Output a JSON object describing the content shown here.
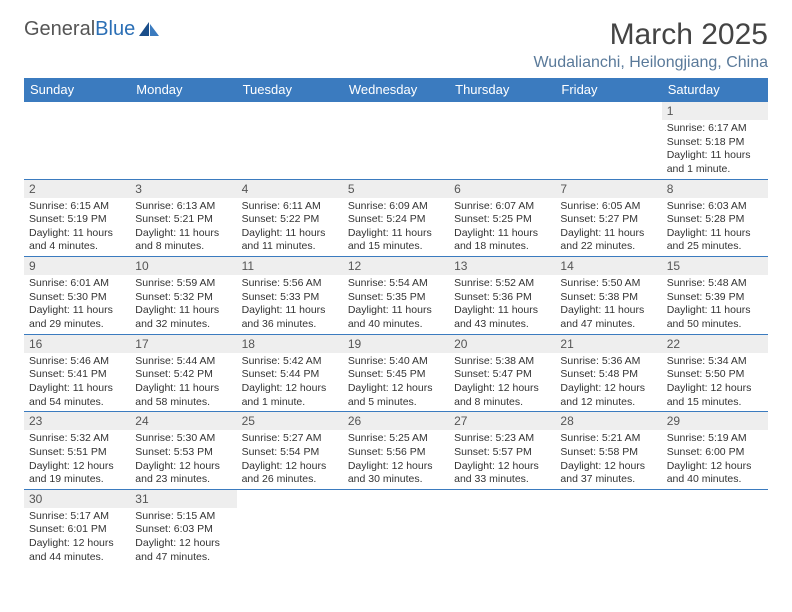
{
  "brand": {
    "part1": "General",
    "part2": "Blue"
  },
  "title": "March 2025",
  "location": "Wudalianchi, Heilongjiang, China",
  "colors": {
    "header_bg": "#3b7bbf",
    "header_fg": "#ffffff",
    "daynum_bg": "#eeeeee",
    "border": "#3b7bbf",
    "location_fg": "#5a7a9a"
  },
  "daynames": [
    "Sunday",
    "Monday",
    "Tuesday",
    "Wednesday",
    "Thursday",
    "Friday",
    "Saturday"
  ],
  "weeks": [
    [
      {
        "n": "",
        "sr": "",
        "ss": "",
        "dl": ""
      },
      {
        "n": "",
        "sr": "",
        "ss": "",
        "dl": ""
      },
      {
        "n": "",
        "sr": "",
        "ss": "",
        "dl": ""
      },
      {
        "n": "",
        "sr": "",
        "ss": "",
        "dl": ""
      },
      {
        "n": "",
        "sr": "",
        "ss": "",
        "dl": ""
      },
      {
        "n": "",
        "sr": "",
        "ss": "",
        "dl": ""
      },
      {
        "n": "1",
        "sr": "Sunrise: 6:17 AM",
        "ss": "Sunset: 5:18 PM",
        "dl": "Daylight: 11 hours and 1 minute."
      }
    ],
    [
      {
        "n": "2",
        "sr": "Sunrise: 6:15 AM",
        "ss": "Sunset: 5:19 PM",
        "dl": "Daylight: 11 hours and 4 minutes."
      },
      {
        "n": "3",
        "sr": "Sunrise: 6:13 AM",
        "ss": "Sunset: 5:21 PM",
        "dl": "Daylight: 11 hours and 8 minutes."
      },
      {
        "n": "4",
        "sr": "Sunrise: 6:11 AM",
        "ss": "Sunset: 5:22 PM",
        "dl": "Daylight: 11 hours and 11 minutes."
      },
      {
        "n": "5",
        "sr": "Sunrise: 6:09 AM",
        "ss": "Sunset: 5:24 PM",
        "dl": "Daylight: 11 hours and 15 minutes."
      },
      {
        "n": "6",
        "sr": "Sunrise: 6:07 AM",
        "ss": "Sunset: 5:25 PM",
        "dl": "Daylight: 11 hours and 18 minutes."
      },
      {
        "n": "7",
        "sr": "Sunrise: 6:05 AM",
        "ss": "Sunset: 5:27 PM",
        "dl": "Daylight: 11 hours and 22 minutes."
      },
      {
        "n": "8",
        "sr": "Sunrise: 6:03 AM",
        "ss": "Sunset: 5:28 PM",
        "dl": "Daylight: 11 hours and 25 minutes."
      }
    ],
    [
      {
        "n": "9",
        "sr": "Sunrise: 6:01 AM",
        "ss": "Sunset: 5:30 PM",
        "dl": "Daylight: 11 hours and 29 minutes."
      },
      {
        "n": "10",
        "sr": "Sunrise: 5:59 AM",
        "ss": "Sunset: 5:32 PM",
        "dl": "Daylight: 11 hours and 32 minutes."
      },
      {
        "n": "11",
        "sr": "Sunrise: 5:56 AM",
        "ss": "Sunset: 5:33 PM",
        "dl": "Daylight: 11 hours and 36 minutes."
      },
      {
        "n": "12",
        "sr": "Sunrise: 5:54 AM",
        "ss": "Sunset: 5:35 PM",
        "dl": "Daylight: 11 hours and 40 minutes."
      },
      {
        "n": "13",
        "sr": "Sunrise: 5:52 AM",
        "ss": "Sunset: 5:36 PM",
        "dl": "Daylight: 11 hours and 43 minutes."
      },
      {
        "n": "14",
        "sr": "Sunrise: 5:50 AM",
        "ss": "Sunset: 5:38 PM",
        "dl": "Daylight: 11 hours and 47 minutes."
      },
      {
        "n": "15",
        "sr": "Sunrise: 5:48 AM",
        "ss": "Sunset: 5:39 PM",
        "dl": "Daylight: 11 hours and 50 minutes."
      }
    ],
    [
      {
        "n": "16",
        "sr": "Sunrise: 5:46 AM",
        "ss": "Sunset: 5:41 PM",
        "dl": "Daylight: 11 hours and 54 minutes."
      },
      {
        "n": "17",
        "sr": "Sunrise: 5:44 AM",
        "ss": "Sunset: 5:42 PM",
        "dl": "Daylight: 11 hours and 58 minutes."
      },
      {
        "n": "18",
        "sr": "Sunrise: 5:42 AM",
        "ss": "Sunset: 5:44 PM",
        "dl": "Daylight: 12 hours and 1 minute."
      },
      {
        "n": "19",
        "sr": "Sunrise: 5:40 AM",
        "ss": "Sunset: 5:45 PM",
        "dl": "Daylight: 12 hours and 5 minutes."
      },
      {
        "n": "20",
        "sr": "Sunrise: 5:38 AM",
        "ss": "Sunset: 5:47 PM",
        "dl": "Daylight: 12 hours and 8 minutes."
      },
      {
        "n": "21",
        "sr": "Sunrise: 5:36 AM",
        "ss": "Sunset: 5:48 PM",
        "dl": "Daylight: 12 hours and 12 minutes."
      },
      {
        "n": "22",
        "sr": "Sunrise: 5:34 AM",
        "ss": "Sunset: 5:50 PM",
        "dl": "Daylight: 12 hours and 15 minutes."
      }
    ],
    [
      {
        "n": "23",
        "sr": "Sunrise: 5:32 AM",
        "ss": "Sunset: 5:51 PM",
        "dl": "Daylight: 12 hours and 19 minutes."
      },
      {
        "n": "24",
        "sr": "Sunrise: 5:30 AM",
        "ss": "Sunset: 5:53 PM",
        "dl": "Daylight: 12 hours and 23 minutes."
      },
      {
        "n": "25",
        "sr": "Sunrise: 5:27 AM",
        "ss": "Sunset: 5:54 PM",
        "dl": "Daylight: 12 hours and 26 minutes."
      },
      {
        "n": "26",
        "sr": "Sunrise: 5:25 AM",
        "ss": "Sunset: 5:56 PM",
        "dl": "Daylight: 12 hours and 30 minutes."
      },
      {
        "n": "27",
        "sr": "Sunrise: 5:23 AM",
        "ss": "Sunset: 5:57 PM",
        "dl": "Daylight: 12 hours and 33 minutes."
      },
      {
        "n": "28",
        "sr": "Sunrise: 5:21 AM",
        "ss": "Sunset: 5:58 PM",
        "dl": "Daylight: 12 hours and 37 minutes."
      },
      {
        "n": "29",
        "sr": "Sunrise: 5:19 AM",
        "ss": "Sunset: 6:00 PM",
        "dl": "Daylight: 12 hours and 40 minutes."
      }
    ],
    [
      {
        "n": "30",
        "sr": "Sunrise: 5:17 AM",
        "ss": "Sunset: 6:01 PM",
        "dl": "Daylight: 12 hours and 44 minutes."
      },
      {
        "n": "31",
        "sr": "Sunrise: 5:15 AM",
        "ss": "Sunset: 6:03 PM",
        "dl": "Daylight: 12 hours and 47 minutes."
      },
      {
        "n": "",
        "sr": "",
        "ss": "",
        "dl": ""
      },
      {
        "n": "",
        "sr": "",
        "ss": "",
        "dl": ""
      },
      {
        "n": "",
        "sr": "",
        "ss": "",
        "dl": ""
      },
      {
        "n": "",
        "sr": "",
        "ss": "",
        "dl": ""
      },
      {
        "n": "",
        "sr": "",
        "ss": "",
        "dl": ""
      }
    ]
  ]
}
